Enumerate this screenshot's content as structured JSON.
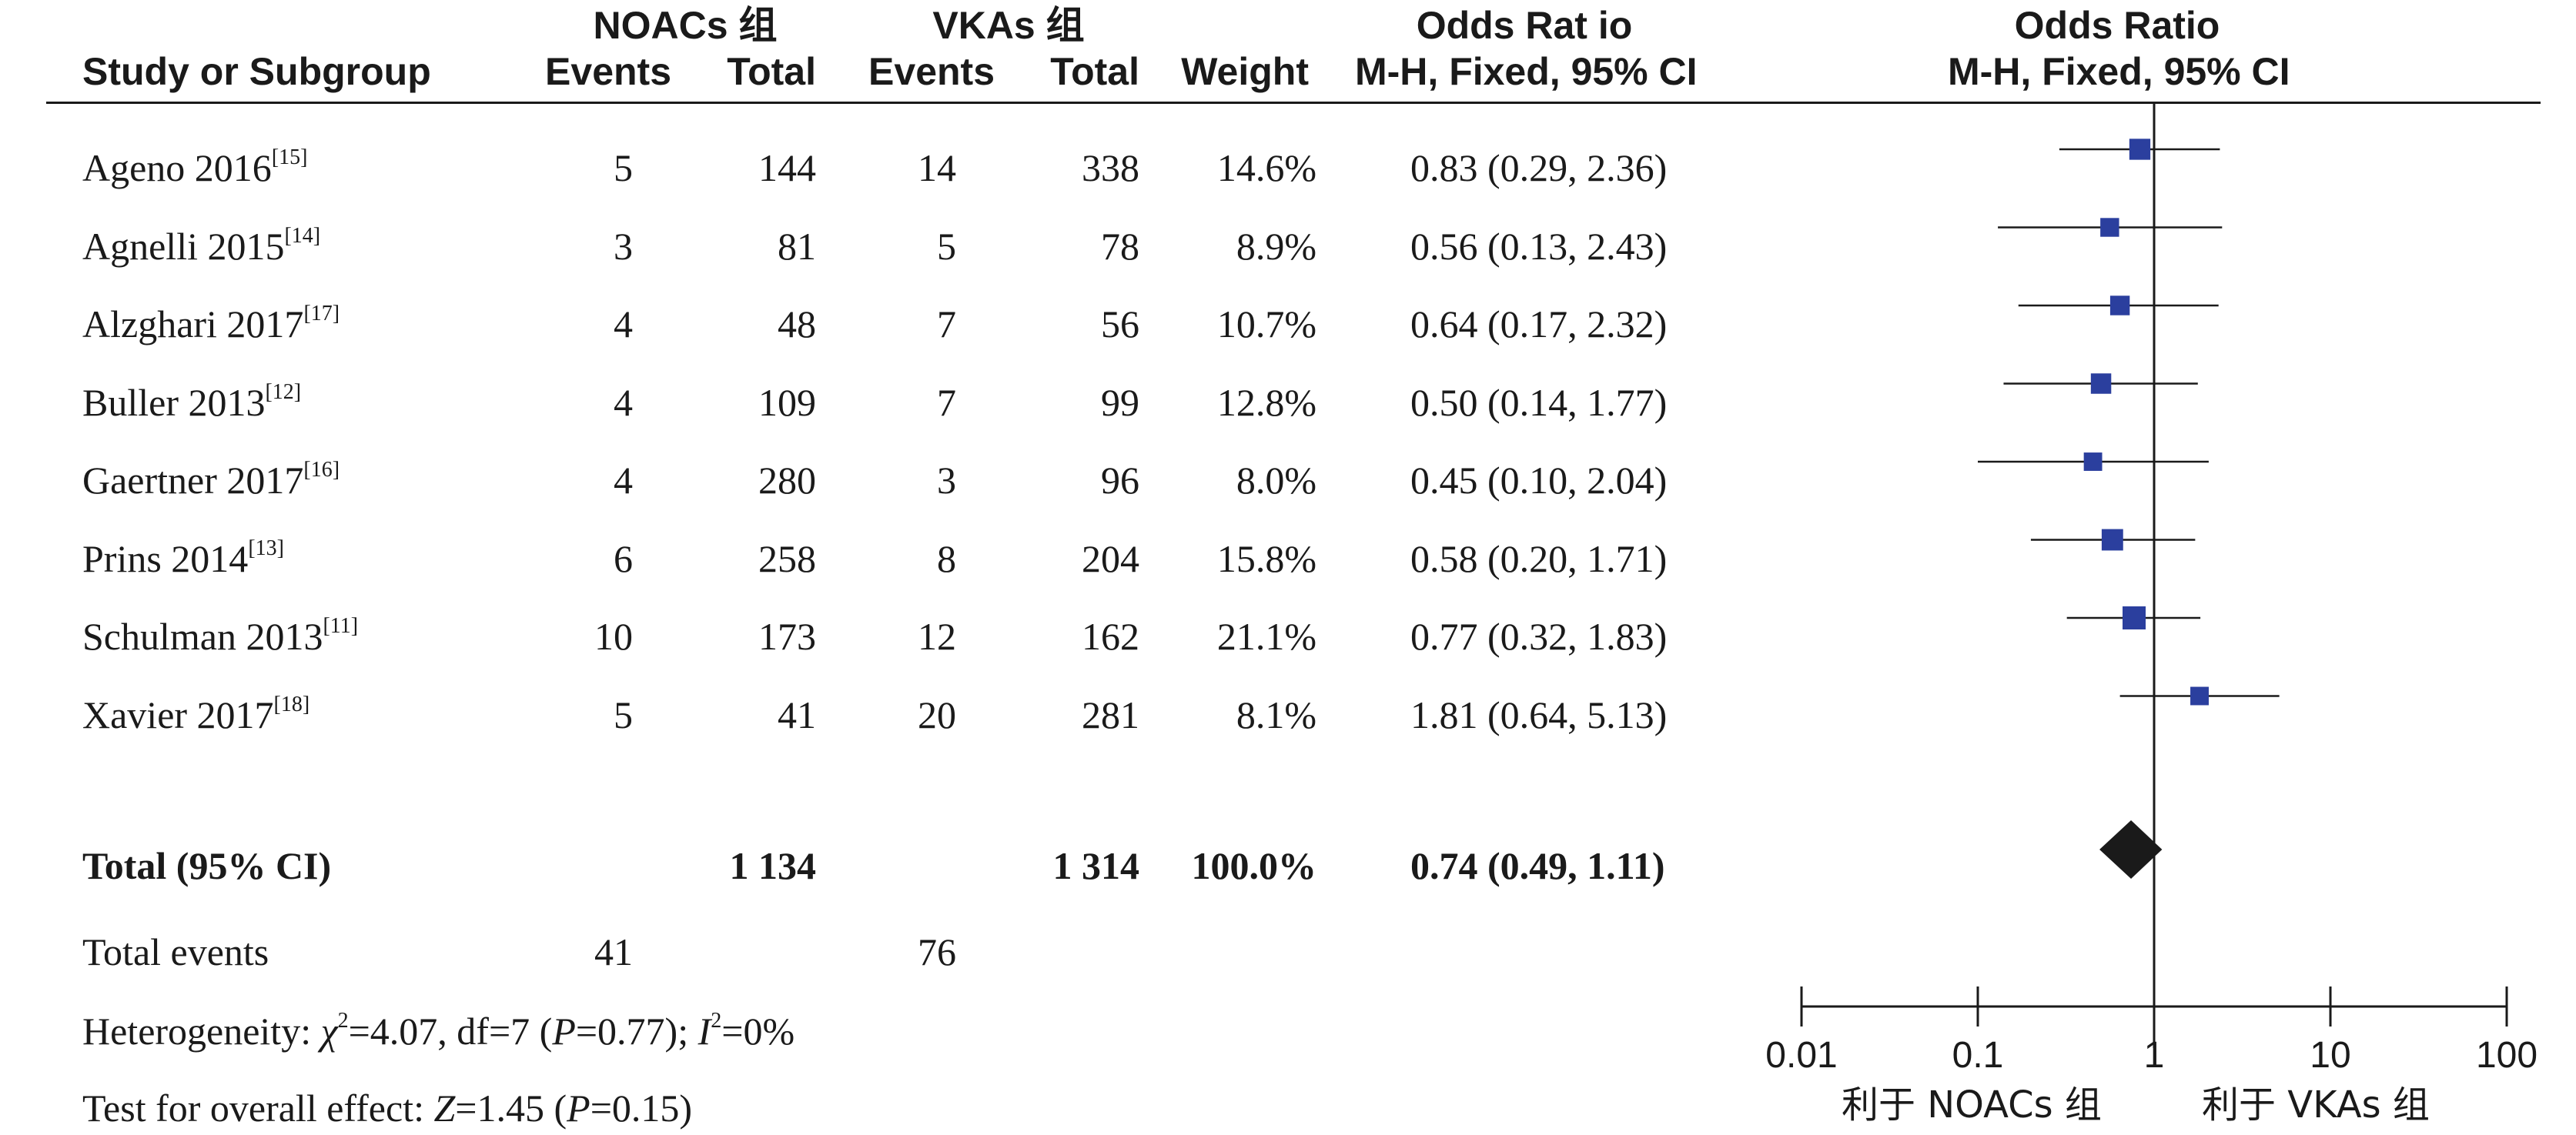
{
  "headers": {
    "study": "Study or Subgroup",
    "group1": "NOACs 组",
    "group2": "VKAs 组",
    "events": "Events",
    "total": "Total",
    "weight": "Weight",
    "or_title": "Odds Rat io",
    "or_method": "M-H, Fixed, 95% CI",
    "plot_title": "Odds Ratio",
    "plot_method": "M-H, Fixed, 95% CI"
  },
  "studies": [
    {
      "name": "Ageno 2016",
      "ref": "[15]",
      "e1": "5",
      "t1": "144",
      "e2": "14",
      "t2": "338",
      "weight": "14.6%",
      "ci_text": "0.83 (0.29, 2.36)"
    },
    {
      "name": "Agnelli 2015",
      "ref": "[14]",
      "e1": "3",
      "t1": "81",
      "e2": "5",
      "t2": "78",
      "weight": "8.9%",
      "ci_text": "0.56 (0.13, 2.43)"
    },
    {
      "name": "Alzghari 2017",
      "ref": "[17]",
      "e1": "4",
      "t1": "48",
      "e2": "7",
      "t2": "56",
      "weight": "10.7%",
      "ci_text": "0.64 (0.17, 2.32)"
    },
    {
      "name": "Buller 2013",
      "ref": "[12]",
      "e1": "4",
      "t1": "109",
      "e2": "7",
      "t2": "99",
      "weight": "12.8%",
      "ci_text": "0.50 (0.14, 1.77)"
    },
    {
      "name": "Gaertner 2017",
      "ref": "[16]",
      "e1": "4",
      "t1": "280",
      "e2": "3",
      "t2": "96",
      "weight": "8.0%",
      "ci_text": "0.45 (0.10, 2.04)"
    },
    {
      "name": "Prins 2014",
      "ref": "[13]",
      "e1": "6",
      "t1": "258",
      "e2": "8",
      "t2": "204",
      "weight": "15.8%",
      "ci_text": "0.58 (0.20, 1.71)"
    },
    {
      "name": "Schulman 2013",
      "ref": "[11]",
      "e1": "10",
      "t1": "173",
      "e2": "12",
      "t2": "162",
      "weight": "21.1%",
      "ci_text": "0.77 (0.32, 1.83)"
    },
    {
      "name": "Xavier 2017",
      "ref": "[18]",
      "e1": "5",
      "t1": "41",
      "e2": "20",
      "t2": "281",
      "weight": "8.1%",
      "ci_text": "1.81 (0.64, 5.13)"
    }
  ],
  "total": {
    "label": "Total (95% CI)",
    "t1": "1 134",
    "t2": "1 314",
    "weight": "100.0%",
    "ci_text": "0.74 (0.49, 1.11)"
  },
  "total_events": {
    "label": "Total events",
    "e1": "41",
    "e2": "76"
  },
  "heterogeneity": {
    "label": "Heterogeneity: ",
    "chi": "χ",
    "chi_sup": "2",
    "chi_val": "=4.07, df=7 (",
    "p": "P",
    "p_val": "=0.77); ",
    "i": "I",
    "i_sup": "2",
    "i_val": "=0%"
  },
  "overall": {
    "label": "Test for overall effect: ",
    "z": "Z",
    "z_val": "=1.45 (",
    "p": "P",
    "p_val": "=0.15)"
  },
  "axis": {
    "ticks": [
      "0.01",
      "0.1",
      "1",
      "10",
      "100"
    ],
    "favours_left": "利于 NOACs 组",
    "favours_right": "利于 VKAs 组"
  },
  "colors": {
    "marker": "#2b3f9e",
    "diamond": "#1a1a1a",
    "line": "#1a1a1a"
  },
  "chart_data": {
    "type": "forest",
    "scale": "log",
    "xlim": [
      0.01,
      100
    ],
    "reference_line": 1,
    "series": [
      {
        "name": "Ageno 2016",
        "or": 0.83,
        "lower": 0.29,
        "upper": 2.36,
        "weight": 14.6
      },
      {
        "name": "Agnelli 2015",
        "or": 0.56,
        "lower": 0.13,
        "upper": 2.43,
        "weight": 8.9
      },
      {
        "name": "Alzghari 2017",
        "or": 0.64,
        "lower": 0.17,
        "upper": 2.32,
        "weight": 10.7
      },
      {
        "name": "Buller 2013",
        "or": 0.5,
        "lower": 0.14,
        "upper": 1.77,
        "weight": 12.8
      },
      {
        "name": "Gaertner 2017",
        "or": 0.45,
        "lower": 0.1,
        "upper": 2.04,
        "weight": 8.0
      },
      {
        "name": "Prins 2014",
        "or": 0.58,
        "lower": 0.2,
        "upper": 1.71,
        "weight": 15.8
      },
      {
        "name": "Schulman 2013",
        "or": 0.77,
        "lower": 0.32,
        "upper": 1.83,
        "weight": 21.1
      },
      {
        "name": "Xavier 2017",
        "or": 1.81,
        "lower": 0.64,
        "upper": 5.13,
        "weight": 8.1
      }
    ],
    "pooled": {
      "name": "Total (95% CI)",
      "or": 0.74,
      "lower": 0.49,
      "upper": 1.11
    }
  }
}
